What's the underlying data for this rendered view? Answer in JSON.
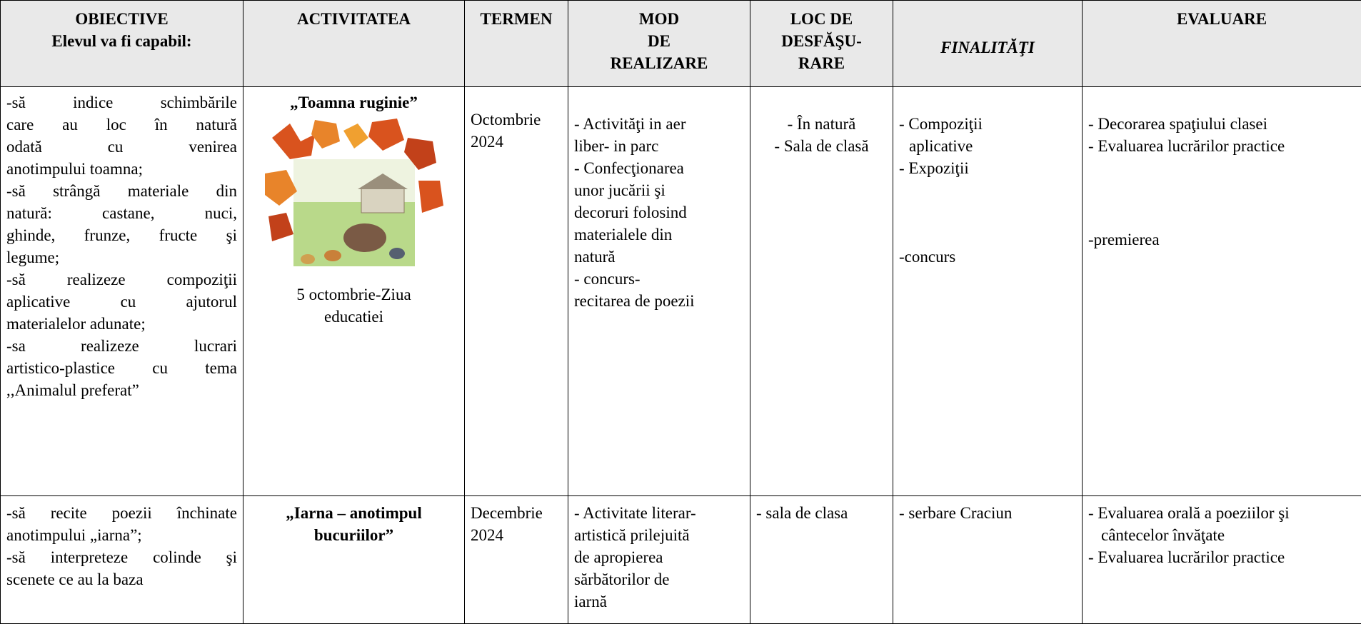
{
  "table": {
    "headers": [
      [
        "OBIECTIVE",
        "Elevul va fi capabil:"
      ],
      [
        "ACTIVITATEA"
      ],
      [
        "TERMEN"
      ],
      [
        "MOD",
        "DE",
        "REALIZARE"
      ],
      [
        "LOC DE",
        "DESFĂŞU-",
        "RARE"
      ],
      [
        "FINALITĂŢI"
      ],
      [
        "EVALUARE"
      ]
    ],
    "rows": [
      [
        {
          "groups": [
            [
              "-să indice schimbările",
              "care au loc în natură",
              "odată cu venirea",
              "anotimpului toamna;",
              "-să strângă materiale din",
              "natură: castane, nuci,",
              "ghinde, frunze, fructe şi",
              "legume;",
              "-să realizeze compoziţii",
              "aplicative cu ajutorul",
              "materialelor adunate;",
              "-sa realizeze lucrari",
              "artistico-plastice cu tema",
              ",,Animalul preferat”"
            ]
          ]
        },
        {
          "title": [
            "„Toamna ruginie”"
          ],
          "caption": [
            "5 octombrie-Ziua",
            "educatiei"
          ]
        },
        {
          "groups": [
            [
              "Octombrie",
              "2024"
            ]
          ]
        },
        {
          "groups": [
            [
              "- Activităţi in aer",
              "liber- in parc",
              "- Confecţionarea",
              "unor jucării şi",
              "decoruri folosind",
              "materialele din",
              "natură",
              "- concurs-",
              "recitarea de poezii"
            ]
          ]
        },
        {
          "groups": [
            [
              "- În natură",
              "- Sala de clasă"
            ]
          ]
        },
        {
          "groups": [
            [
              "- Compoziţii",
              "aplicative",
              "- Expoziţii"
            ],
            [
              "-concurs"
            ]
          ]
        },
        {
          "groups": [
            [
              "- Decorarea spaţiului clasei",
              "- Evaluarea lucrărilor practice"
            ],
            [
              "-premierea"
            ]
          ]
        }
      ],
      [
        {
          "groups": [
            [
              "-să recite poezii închinate",
              "anotimpului „iarna”;",
              "-să interpreteze colinde şi",
              "scenete ce au la baza"
            ]
          ]
        },
        {
          "title": [
            "„Iarna – anotimpul",
            "bucuriilor”"
          ]
        },
        {
          "groups": [
            [
              "Decembrie",
              "2024"
            ]
          ]
        },
        {
          "groups": [
            [
              "- Activitate literar-",
              "artistică prilejuită",
              "de apropierea",
              "sărbătorilor de",
              "iarnă"
            ]
          ]
        },
        {
          "groups": [
            [
              "- sala de clasa"
            ]
          ]
        },
        {
          "groups": [
            [
              "- serbare Craciun"
            ]
          ]
        },
        {
          "groups": [
            [
              "- Evaluarea orală a poeziilor şi",
              "cântecelor învăţate",
              "- Evaluarea lucrărilor practice"
            ]
          ]
        }
      ]
    ]
  }
}
